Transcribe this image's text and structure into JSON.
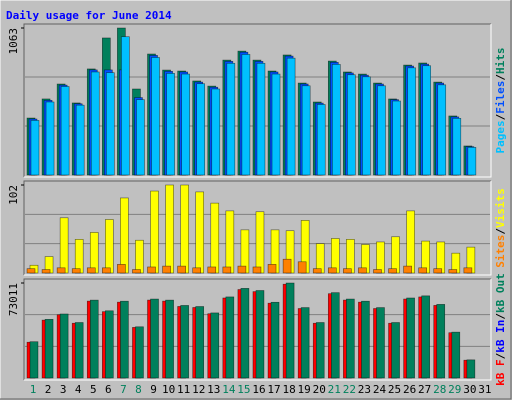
{
  "legend_separator": "/",
  "chart_data": [
    {
      "type": "bar",
      "title": "Daily usage for June 2014",
      "ylim": [
        0,
        1063
      ],
      "yticks": [
        1063
      ],
      "series": [
        {
          "name": "Hits",
          "color": "#00805c",
          "values": [
            412,
            550,
            658,
            521,
            767,
            991,
            1063,
            622,
            875,
            759,
            752,
            680,
            643,
            831,
            896,
            831,
            752,
            868,
            665,
            528,
            824,
            745,
            730,
            665,
            550,
            795,
            810,
            672,
            427,
            210,
            0
          ]
        },
        {
          "name": "Files",
          "color": "#0050ff",
          "values": [
            405,
            540,
            650,
            515,
            760,
            760,
            760,
            560,
            865,
            750,
            745,
            672,
            635,
            822,
            888,
            822,
            745,
            860,
            658,
            520,
            815,
            738,
            722,
            658,
            545,
            788,
            802,
            665,
            420,
            205,
            0
          ]
        },
        {
          "name": "Pages",
          "color": "#00c0ff",
          "values": [
            395,
            528,
            640,
            505,
            745,
            740,
            1000,
            545,
            850,
            735,
            730,
            660,
            622,
            808,
            872,
            808,
            730,
            845,
            645,
            510,
            800,
            725,
            710,
            645,
            535,
            775,
            790,
            652,
            410,
            200,
            0
          ]
        }
      ]
    },
    {
      "type": "bar",
      "ylim": [
        0,
        102
      ],
      "yticks": [
        102
      ],
      "series": [
        {
          "name": "Visits",
          "color": "#ffff00",
          "values": [
            9,
            19,
            64,
            39,
            47,
            62,
            87,
            38,
            95,
            102,
            102,
            94,
            81,
            72,
            50,
            71,
            50,
            49,
            61,
            34,
            40,
            39,
            33,
            36,
            42,
            72,
            37,
            36,
            23,
            30,
            0
          ]
        },
        {
          "name": "Sites",
          "color": "#ff8000",
          "values": [
            5,
            4,
            6,
            5,
            6,
            6,
            10,
            4,
            7,
            8,
            8,
            6,
            7,
            7,
            8,
            7,
            10,
            16,
            13,
            5,
            6,
            5,
            6,
            4,
            5,
            8,
            6,
            5,
            4,
            6,
            0
          ]
        }
      ]
    },
    {
      "type": "bar",
      "ylim": [
        0,
        73011
      ],
      "yticks": [
        73011
      ],
      "categories": [
        1,
        2,
        3,
        4,
        5,
        6,
        7,
        8,
        9,
        10,
        11,
        12,
        13,
        14,
        15,
        16,
        17,
        18,
        19,
        20,
        21,
        22,
        23,
        24,
        25,
        26,
        27,
        28,
        29,
        30,
        31
      ],
      "category_colors": [
        "#00805c",
        "#000000",
        "#000000",
        "#000000",
        "#000000",
        "#000000",
        "#00805c",
        "#00805c",
        "#000000",
        "#000000",
        "#000000",
        "#000000",
        "#000000",
        "#00805c",
        "#00805c",
        "#000000",
        "#000000",
        "#000000",
        "#000000",
        "#000000",
        "#00805c",
        "#00805c",
        "#000000",
        "#000000",
        "#000000",
        "#000000",
        "#000000",
        "#00805c",
        "#00805c",
        "#000000",
        "#000000"
      ],
      "series": [
        {
          "name": "kB F",
          "color": "#ff0000",
          "values": [
            27500,
            44500,
            48600,
            42100,
            59100,
            51000,
            58300,
            38900,
            59900,
            59100,
            55000,
            54200,
            49400,
            61500,
            68000,
            66400,
            57500,
            72100,
            53400,
            42100,
            64800,
            59900,
            58300,
            53400,
            42100,
            60700,
            62300,
            55800,
            34800,
            13700,
            0
          ]
        },
        {
          "name": "kB In",
          "color": "#0000ff",
          "values": [
            0,
            0,
            0,
            0,
            0,
            0,
            0,
            0,
            0,
            0,
            0,
            0,
            0,
            0,
            0,
            0,
            0,
            0,
            0,
            0,
            0,
            0,
            0,
            0,
            0,
            0,
            0,
            0,
            0,
            0,
            0
          ]
        },
        {
          "name": "kB Out",
          "color": "#00805c",
          "values": [
            27880,
            45100,
            49200,
            42640,
            59860,
            51660,
            59040,
            39360,
            60680,
            59860,
            55760,
            54940,
            50020,
            62320,
            68880,
            67240,
            58220,
            73011,
            54120,
            42640,
            65600,
            60680,
            59040,
            54120,
            42640,
            61500,
            63140,
            56580,
            35260,
            13940,
            0
          ]
        }
      ]
    }
  ]
}
